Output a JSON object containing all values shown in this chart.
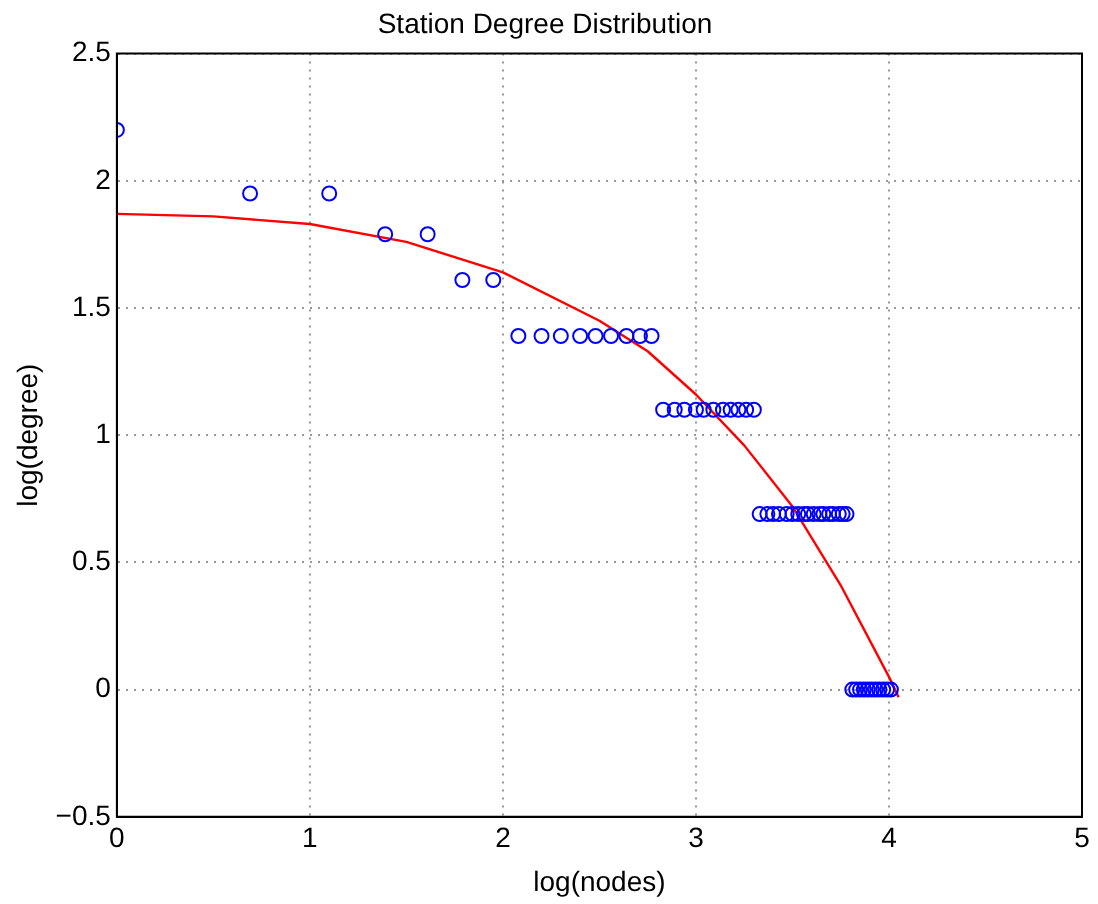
{
  "chart_data": {
    "type": "scatter",
    "title": "Station Degree Distribution",
    "xlabel": "log(nodes)",
    "ylabel": "log(degree)",
    "xlim": [
      0,
      5
    ],
    "xticks": [
      0,
      1,
      2,
      3,
      4,
      5
    ],
    "ylim": [
      -0.5,
      2.5
    ],
    "yticks": [
      {
        "value": -0.5,
        "label": "−0.5"
      },
      0,
      0.5,
      1,
      1.5,
      2,
      2.5
    ],
    "grid": true,
    "legend": false,
    "marker": "circle",
    "series": [
      {
        "color": "#0000ff",
        "x": [
          0,
          0.69,
          1.1,
          1.39,
          1.61,
          1.79,
          1.95,
          2.08,
          2.2,
          2.3,
          2.4,
          2.48,
          2.56,
          2.64,
          2.71,
          2.77,
          2.83,
          2.89,
          2.94,
          3.0,
          3.04,
          3.09,
          3.14,
          3.18,
          3.22,
          3.26,
          3.3,
          3.33,
          3.37,
          3.4,
          3.43,
          3.47,
          3.5,
          3.53,
          3.56,
          3.58,
          3.61,
          3.64,
          3.66,
          3.69,
          3.71,
          3.74,
          3.76,
          3.78,
          3.81,
          3.83,
          3.85,
          3.87,
          3.89,
          3.91,
          3.93,
          3.95,
          3.97,
          3.99,
          4.01
        ],
        "values": [
          2.2,
          1.95,
          1.95,
          1.79,
          1.79,
          1.61,
          1.61,
          1.39,
          1.39,
          1.39,
          1.39,
          1.39,
          1.39,
          1.39,
          1.39,
          1.39,
          1.1,
          1.1,
          1.1,
          1.1,
          1.1,
          1.1,
          1.1,
          1.1,
          1.1,
          1.1,
          1.1,
          0.69,
          0.69,
          0.69,
          0.69,
          0.69,
          0.69,
          0.69,
          0.69,
          0.69,
          0.69,
          0.69,
          0.69,
          0.69,
          0.69,
          0.69,
          0.69,
          0.69,
          0,
          0,
          0,
          0,
          0,
          0,
          0,
          0,
          0,
          0,
          0
        ]
      },
      {
        "type": "line",
        "color": "#ff0000",
        "marker": "none",
        "x": [
          0,
          0.5,
          1,
          1.5,
          2,
          2.5,
          2.75,
          3,
          3.25,
          3.5,
          3.75,
          4,
          4.05
        ],
        "values": [
          1.87,
          1.86,
          1.83,
          1.76,
          1.64,
          1.45,
          1.33,
          1.16,
          0.96,
          0.72,
          0.41,
          0.05,
          -0.03
        ]
      }
    ]
  }
}
